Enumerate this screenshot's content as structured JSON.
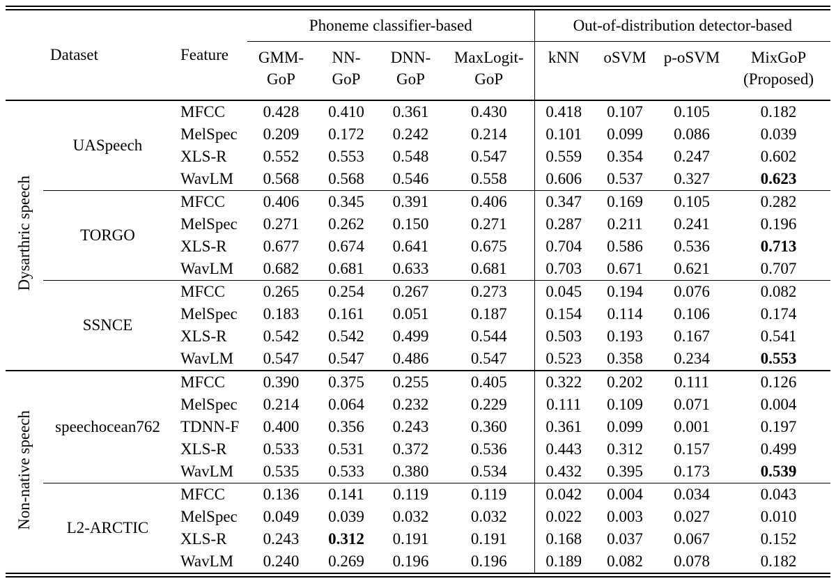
{
  "table": {
    "corner": {
      "dataset": "Dataset",
      "feature": "Feature"
    },
    "groups": [
      {
        "label": "Phoneme classifier-based"
      },
      {
        "label": "Out-of-distribution detector-based"
      }
    ],
    "columns": [
      {
        "line1": "GMM-",
        "line2": "GoP"
      },
      {
        "line1": "NN-",
        "line2": "GoP"
      },
      {
        "line1": "DNN-",
        "line2": "GoP"
      },
      {
        "line1": "MaxLogit-",
        "line2": "GoP"
      },
      {
        "line1": "kNN",
        "line2": ""
      },
      {
        "line1": "oSVM",
        "line2": ""
      },
      {
        "line1": "p-oSVM",
        "line2": ""
      },
      {
        "line1": "MixGoP",
        "line2": "(Proposed)"
      }
    ],
    "sections": [
      {
        "label": "Dysarthric speech",
        "datasets": [
          {
            "name": "UASpeech",
            "rows": [
              {
                "feature": "MFCC",
                "values": [
                  "0.428",
                  "0.410",
                  "0.361",
                  "0.430",
                  "0.418",
                  "0.107",
                  "0.105",
                  "0.182"
                ],
                "bold": []
              },
              {
                "feature": "MelSpec",
                "values": [
                  "0.209",
                  "0.172",
                  "0.242",
                  "0.214",
                  "0.101",
                  "0.099",
                  "0.086",
                  "0.039"
                ],
                "bold": []
              },
              {
                "feature": "XLS-R",
                "values": [
                  "0.552",
                  "0.553",
                  "0.548",
                  "0.547",
                  "0.559",
                  "0.354",
                  "0.247",
                  "0.602"
                ],
                "bold": []
              },
              {
                "feature": "WavLM",
                "values": [
                  "0.568",
                  "0.568",
                  "0.546",
                  "0.558",
                  "0.606",
                  "0.537",
                  "0.327",
                  "0.623"
                ],
                "bold": [
                  7
                ]
              }
            ]
          },
          {
            "name": "TORGO",
            "rows": [
              {
                "feature": "MFCC",
                "values": [
                  "0.406",
                  "0.345",
                  "0.391",
                  "0.406",
                  "0.347",
                  "0.169",
                  "0.105",
                  "0.282"
                ],
                "bold": []
              },
              {
                "feature": "MelSpec",
                "values": [
                  "0.271",
                  "0.262",
                  "0.150",
                  "0.271",
                  "0.287",
                  "0.211",
                  "0.241",
                  "0.196"
                ],
                "bold": []
              },
              {
                "feature": "XLS-R",
                "values": [
                  "0.677",
                  "0.674",
                  "0.641",
                  "0.675",
                  "0.704",
                  "0.586",
                  "0.536",
                  "0.713"
                ],
                "bold": [
                  7
                ]
              },
              {
                "feature": "WavLM",
                "values": [
                  "0.682",
                  "0.681",
                  "0.633",
                  "0.681",
                  "0.703",
                  "0.671",
                  "0.621",
                  "0.707"
                ],
                "bold": []
              }
            ]
          },
          {
            "name": "SSNCE",
            "rows": [
              {
                "feature": "MFCC",
                "values": [
                  "0.265",
                  "0.254",
                  "0.267",
                  "0.273",
                  "0.045",
                  "0.194",
                  "0.076",
                  "0.082"
                ],
                "bold": []
              },
              {
                "feature": "MelSpec",
                "values": [
                  "0.183",
                  "0.161",
                  "0.051",
                  "0.187",
                  "0.154",
                  "0.114",
                  "0.106",
                  "0.174"
                ],
                "bold": []
              },
              {
                "feature": "XLS-R",
                "values": [
                  "0.542",
                  "0.542",
                  "0.499",
                  "0.544",
                  "0.503",
                  "0.193",
                  "0.167",
                  "0.541"
                ],
                "bold": []
              },
              {
                "feature": "WavLM",
                "values": [
                  "0.547",
                  "0.547",
                  "0.486",
                  "0.547",
                  "0.523",
                  "0.358",
                  "0.234",
                  "0.553"
                ],
                "bold": [
                  7
                ]
              }
            ]
          }
        ]
      },
      {
        "label": "Non-native speech",
        "datasets": [
          {
            "name": "speechocean762",
            "rows": [
              {
                "feature": "MFCC",
                "values": [
                  "0.390",
                  "0.375",
                  "0.255",
                  "0.405",
                  "0.322",
                  "0.202",
                  "0.111",
                  "0.126"
                ],
                "bold": []
              },
              {
                "feature": "MelSpec",
                "values": [
                  "0.214",
                  "0.064",
                  "0.232",
                  "0.229",
                  "0.111",
                  "0.109",
                  "0.071",
                  "0.004"
                ],
                "bold": []
              },
              {
                "feature": "TDNN-F",
                "values": [
                  "0.400",
                  "0.356",
                  "0.243",
                  "0.360",
                  "0.361",
                  "0.099",
                  "0.001",
                  "0.197"
                ],
                "bold": []
              },
              {
                "feature": "XLS-R",
                "values": [
                  "0.533",
                  "0.531",
                  "0.372",
                  "0.536",
                  "0.443",
                  "0.312",
                  "0.157",
                  "0.499"
                ],
                "bold": []
              },
              {
                "feature": "WavLM",
                "values": [
                  "0.535",
                  "0.533",
                  "0.380",
                  "0.534",
                  "0.432",
                  "0.395",
                  "0.173",
                  "0.539"
                ],
                "bold": [
                  7
                ]
              }
            ]
          },
          {
            "name": "L2-ARCTIC",
            "rows": [
              {
                "feature": "MFCC",
                "values": [
                  "0.136",
                  "0.141",
                  "0.119",
                  "0.119",
                  "0.042",
                  "0.004",
                  "0.034",
                  "0.043"
                ],
                "bold": []
              },
              {
                "feature": "MelSpec",
                "values": [
                  "0.049",
                  "0.039",
                  "0.032",
                  "0.032",
                  "0.022",
                  "0.003",
                  "0.027",
                  "0.010"
                ],
                "bold": []
              },
              {
                "feature": "XLS-R",
                "values": [
                  "0.243",
                  "0.312",
                  "0.191",
                  "0.191",
                  "0.168",
                  "0.037",
                  "0.067",
                  "0.152"
                ],
                "bold": [
                  1
                ]
              },
              {
                "feature": "WavLM",
                "values": [
                  "0.240",
                  "0.269",
                  "0.196",
                  "0.196",
                  "0.189",
                  "0.082",
                  "0.078",
                  "0.182"
                ],
                "bold": []
              }
            ]
          }
        ]
      }
    ]
  }
}
